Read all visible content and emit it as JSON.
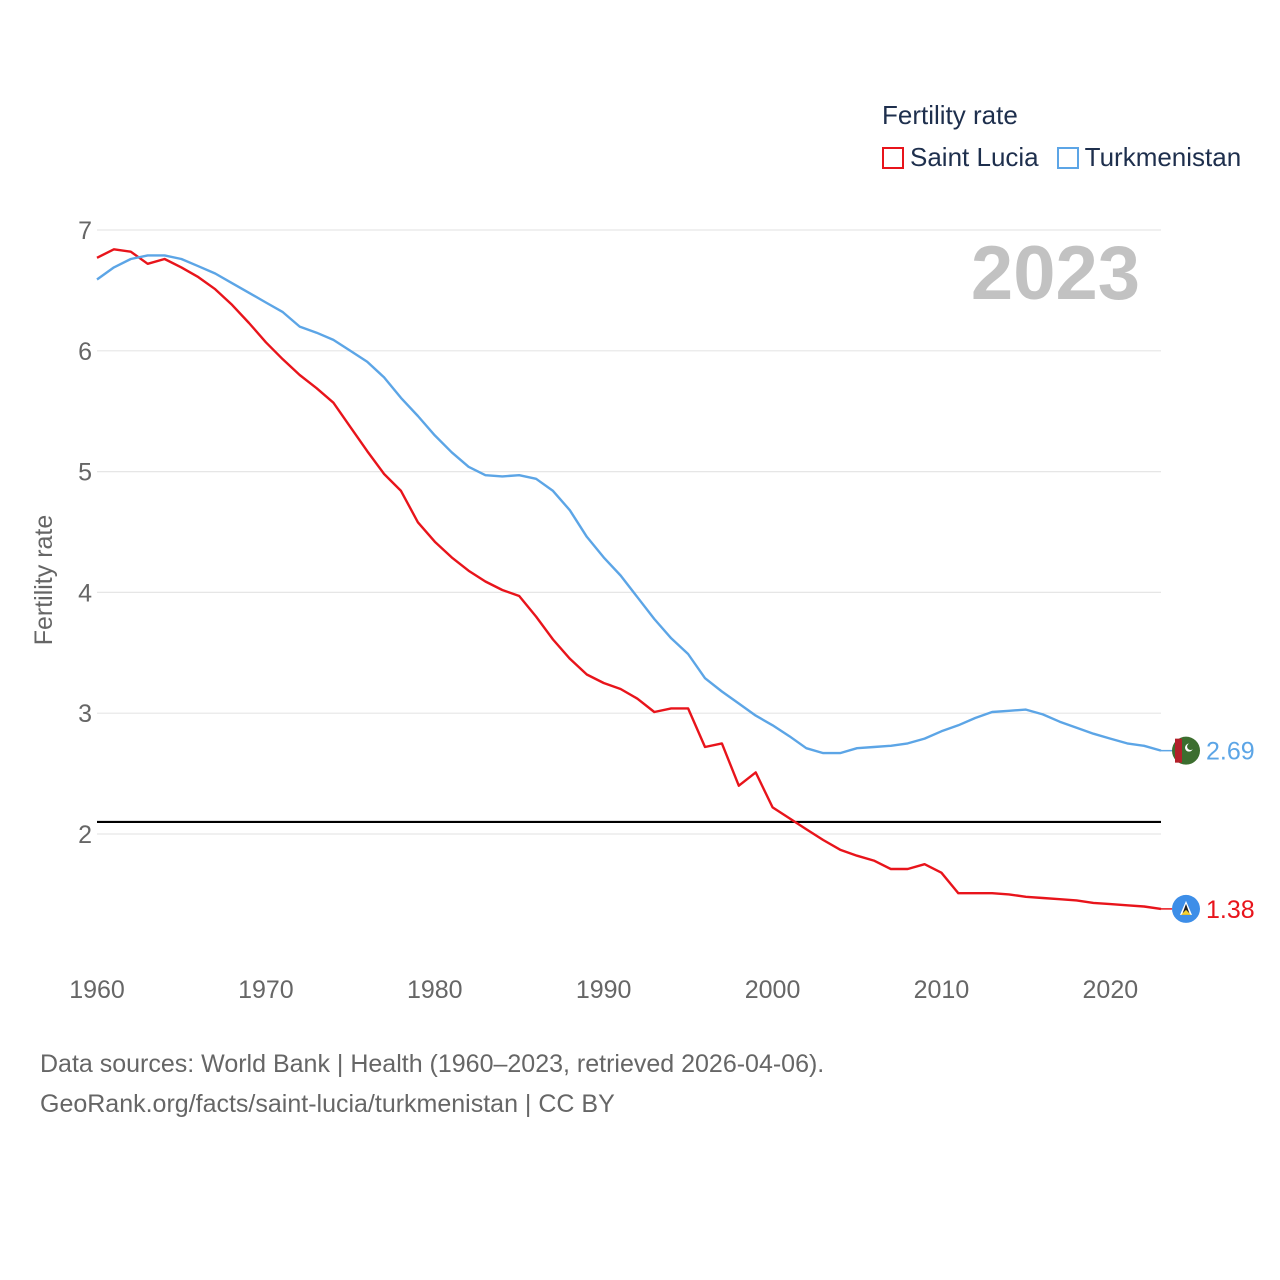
{
  "legend": {
    "title": "Fertility rate",
    "items": [
      {
        "name": "Saint Lucia",
        "color": "#e8141b"
      },
      {
        "name": "Turkmenistan",
        "color": "#5ca5e6"
      }
    ]
  },
  "year_label": "2023",
  "source": {
    "line1": "Data sources: World Bank | Health (1960–2023, retrieved 2026-04-06).",
    "line2": "GeoRank.org/facts/saint-lucia/turkmenistan | CC BY"
  },
  "chart_data": {
    "type": "line",
    "title": "Fertility rate",
    "ylabel": "Fertility rate",
    "xlabel": "",
    "xlim": [
      1960,
      2023
    ],
    "ylim": [
      1.0,
      7.0
    ],
    "yticks": [
      2,
      3,
      4,
      5,
      6,
      7
    ],
    "xticks": [
      1960,
      1970,
      1980,
      1990,
      2000,
      2010,
      2020
    ],
    "reference_line": {
      "y": 2.1,
      "color": "#000000"
    },
    "x": [
      1960,
      1961,
      1962,
      1963,
      1964,
      1965,
      1966,
      1967,
      1968,
      1969,
      1970,
      1971,
      1972,
      1973,
      1974,
      1975,
      1976,
      1977,
      1978,
      1979,
      1980,
      1981,
      1982,
      1983,
      1984,
      1985,
      1986,
      1987,
      1988,
      1989,
      1990,
      1991,
      1992,
      1993,
      1994,
      1995,
      1996,
      1997,
      1998,
      1999,
      2000,
      2001,
      2002,
      2003,
      2004,
      2005,
      2006,
      2007,
      2008,
      2009,
      2010,
      2011,
      2012,
      2013,
      2014,
      2015,
      2016,
      2017,
      2018,
      2019,
      2020,
      2021,
      2022,
      2023
    ],
    "series": [
      {
        "name": "Saint Lucia",
        "color": "#e8141b",
        "end_label": "1.38",
        "flag": "saint-lucia-flag",
        "values": [
          6.77,
          6.84,
          6.82,
          6.72,
          6.76,
          6.69,
          6.61,
          6.51,
          6.38,
          6.23,
          6.07,
          5.93,
          5.8,
          5.69,
          5.57,
          5.37,
          5.17,
          4.98,
          4.84,
          4.58,
          4.42,
          4.29,
          4.18,
          4.09,
          4.02,
          3.97,
          3.8,
          3.61,
          3.45,
          3.32,
          3.25,
          3.2,
          3.12,
          3.01,
          3.04,
          3.04,
          2.72,
          2.75,
          2.4,
          2.51,
          2.22,
          2.13,
          2.04,
          1.95,
          1.87,
          1.82,
          1.78,
          1.71,
          1.71,
          1.75,
          1.68,
          1.51,
          1.51,
          1.51,
          1.5,
          1.48,
          1.47,
          1.46,
          1.45,
          1.43,
          1.42,
          1.41,
          1.4,
          1.38
        ]
      },
      {
        "name": "Turkmenistan",
        "color": "#5ca5e6",
        "end_label": "2.69",
        "flag": "turkmenistan-flag",
        "values": [
          6.59,
          6.69,
          6.76,
          6.79,
          6.79,
          6.76,
          6.7,
          6.64,
          6.56,
          6.48,
          6.4,
          6.32,
          6.2,
          6.15,
          6.09,
          6.0,
          5.91,
          5.78,
          5.61,
          5.46,
          5.3,
          5.16,
          5.04,
          4.97,
          4.96,
          4.97,
          4.94,
          4.84,
          4.68,
          4.46,
          4.29,
          4.14,
          3.96,
          3.78,
          3.62,
          3.49,
          3.29,
          3.18,
          3.08,
          2.98,
          2.9,
          2.81,
          2.71,
          2.67,
          2.67,
          2.71,
          2.72,
          2.73,
          2.75,
          2.79,
          2.85,
          2.9,
          2.96,
          3.01,
          3.02,
          3.03,
          2.99,
          2.93,
          2.88,
          2.83,
          2.79,
          2.75,
          2.73,
          2.69
        ]
      }
    ]
  }
}
